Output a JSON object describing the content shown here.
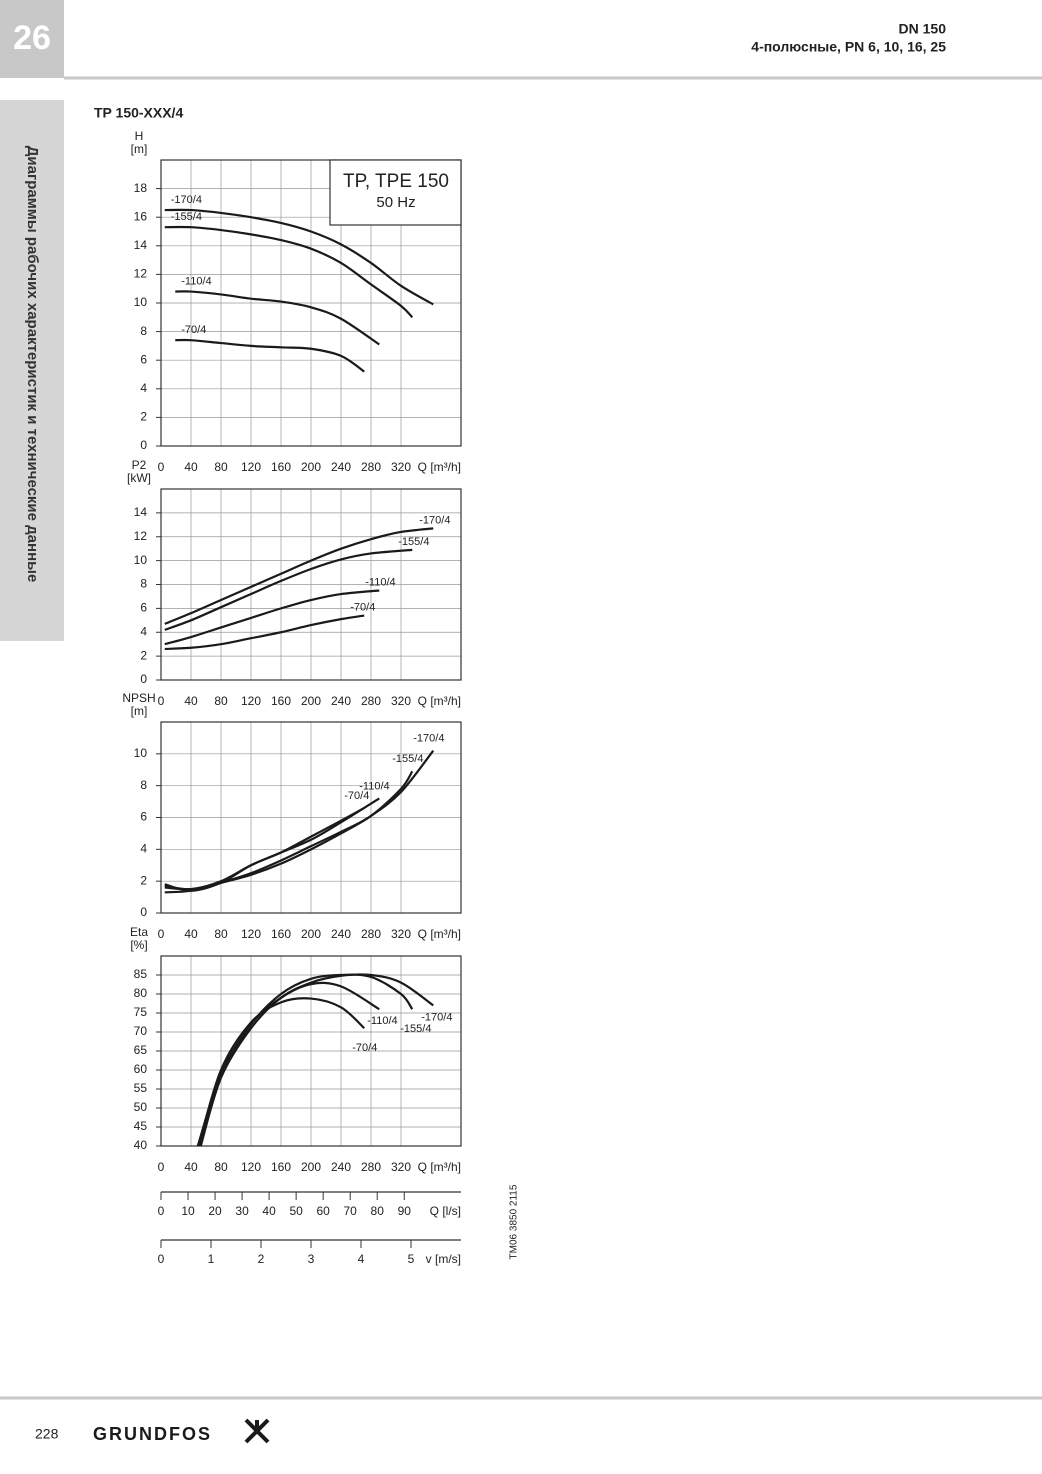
{
  "header": {
    "page_tab": "26",
    "title": "DN 150",
    "subtitle": "4-полюсные, PN 6, 10, 16, 25",
    "side_tab": "Диаграммы рабочих характеристик и технические данные"
  },
  "section_title": "TP 150-XXX/4",
  "chart_data": [
    {
      "type": "line",
      "ylabel": [
        "H",
        "[m]"
      ],
      "xlabel": "Q [m³/h]",
      "color": "#1a1a1a",
      "grid": true,
      "annotation": [
        "TP, TPE 150",
        "50 Hz"
      ],
      "xlim": [
        0,
        400
      ],
      "xticks": [
        0,
        40,
        80,
        120,
        160,
        200,
        240,
        280,
        320
      ],
      "ylim": [
        0,
        20
      ],
      "yticks": [
        0,
        2,
        4,
        6,
        8,
        10,
        12,
        14,
        16,
        18
      ],
      "series": [
        {
          "name": "-170/4",
          "x": [
            5,
            40,
            80,
            120,
            160,
            200,
            240,
            280,
            320,
            363
          ],
          "values": [
            16.5,
            16.5,
            16.3,
            16.0,
            15.6,
            15.0,
            14.1,
            12.8,
            11.2,
            9.9
          ]
        },
        {
          "name": "-155/4",
          "x": [
            5,
            40,
            80,
            120,
            160,
            200,
            240,
            280,
            320,
            335
          ],
          "values": [
            15.3,
            15.3,
            15.1,
            14.8,
            14.4,
            13.8,
            12.8,
            11.3,
            9.8,
            9.0
          ]
        },
        {
          "name": "-110/4",
          "x": [
            19,
            40,
            80,
            120,
            160,
            200,
            240,
            291
          ],
          "values": [
            10.8,
            10.8,
            10.6,
            10.3,
            10.1,
            9.7,
            8.9,
            7.1
          ]
        },
        {
          "name": "-70/4",
          "x": [
            19,
            40,
            80,
            120,
            160,
            200,
            240,
            271
          ],
          "values": [
            7.4,
            7.4,
            7.2,
            7.0,
            6.9,
            6.8,
            6.3,
            5.2
          ]
        }
      ]
    },
    {
      "type": "line",
      "ylabel": [
        "P2",
        "[kW]"
      ],
      "xlabel": "Q [m³/h]",
      "color": "#1a1a1a",
      "grid": true,
      "xlim": [
        0,
        400
      ],
      "xticks": [
        0,
        40,
        80,
        120,
        160,
        200,
        240,
        280,
        320
      ],
      "ylim": [
        0,
        16
      ],
      "yticks": [
        0,
        2,
        4,
        6,
        8,
        10,
        12,
        14
      ],
      "series": [
        {
          "name": "-170/4",
          "x": [
            5,
            40,
            80,
            120,
            160,
            200,
            240,
            280,
            320,
            363
          ],
          "values": [
            4.7,
            5.6,
            6.7,
            7.8,
            8.9,
            10.0,
            11.0,
            11.8,
            12.4,
            12.7
          ]
        },
        {
          "name": "-155/4",
          "x": [
            5,
            40,
            80,
            120,
            160,
            200,
            240,
            280,
            335
          ],
          "values": [
            4.2,
            5.0,
            6.1,
            7.2,
            8.3,
            9.3,
            10.1,
            10.6,
            10.9
          ]
        },
        {
          "name": "-110/4",
          "x": [
            5,
            40,
            80,
            120,
            160,
            200,
            240,
            291
          ],
          "values": [
            3.0,
            3.6,
            4.4,
            5.2,
            6.0,
            6.7,
            7.2,
            7.5
          ]
        },
        {
          "name": "-70/4",
          "x": [
            5,
            40,
            80,
            120,
            160,
            200,
            240,
            271
          ],
          "values": [
            2.6,
            2.7,
            3.0,
            3.5,
            4.0,
            4.6,
            5.1,
            5.4
          ]
        }
      ]
    },
    {
      "type": "line",
      "ylabel": [
        "NPSH",
        "[m]"
      ],
      "xlabel": "Q [m³/h]",
      "color": "#1a1a1a",
      "grid": true,
      "xlim": [
        0,
        400
      ],
      "xticks": [
        0,
        40,
        80,
        120,
        160,
        200,
        240,
        280,
        320
      ],
      "ylim": [
        0,
        12
      ],
      "yticks": [
        0,
        2,
        4,
        6,
        8,
        10
      ],
      "series": [
        {
          "name": "-170/4",
          "x": [
            5,
            40,
            80,
            120,
            160,
            200,
            240,
            280,
            320,
            363
          ],
          "values": [
            1.6,
            1.5,
            1.9,
            2.4,
            3.1,
            4.0,
            5.0,
            6.1,
            7.6,
            10.2
          ]
        },
        {
          "name": "-155/4",
          "x": [
            5,
            40,
            80,
            120,
            160,
            200,
            240,
            280,
            320,
            335
          ],
          "values": [
            1.3,
            1.4,
            1.9,
            2.5,
            3.3,
            4.2,
            5.1,
            6.1,
            7.8,
            8.9
          ]
        },
        {
          "name": "-110/4",
          "x": [
            5,
            40,
            80,
            120,
            160,
            200,
            240,
            291
          ],
          "values": [
            1.7,
            1.5,
            2.0,
            3.0,
            3.8,
            4.6,
            5.7,
            7.2
          ]
        },
        {
          "name": "-70/4",
          "x": [
            5,
            40,
            80,
            120,
            160,
            200,
            240,
            271
          ],
          "values": [
            1.8,
            1.4,
            1.9,
            3.0,
            3.8,
            4.8,
            5.8,
            6.6
          ]
        }
      ]
    },
    {
      "type": "line",
      "ylabel": [
        "Eta",
        "[%]"
      ],
      "xlabel": "Q [m³/h]",
      "color": "#1a1a1a",
      "grid": true,
      "xlim": [
        0,
        400
      ],
      "xticks": [
        0,
        40,
        80,
        120,
        160,
        200,
        240,
        280,
        320
      ],
      "ylim": [
        40,
        90
      ],
      "yticks": [
        40,
        45,
        50,
        55,
        60,
        65,
        70,
        75,
        80,
        85
      ],
      "series": [
        {
          "name": "-170/4",
          "x": [
            52,
            80,
            120,
            160,
            200,
            240,
            280,
            320,
            363
          ],
          "values": [
            40,
            58,
            71,
            79,
            83,
            84.8,
            85,
            83,
            77
          ]
        },
        {
          "name": "-155/4",
          "x": [
            49,
            80,
            120,
            160,
            200,
            240,
            280,
            320,
            335
          ],
          "values": [
            40,
            59,
            72,
            80,
            84,
            85,
            84.5,
            80,
            76
          ]
        },
        {
          "name": "-110/4",
          "x": [
            53,
            80,
            120,
            160,
            200,
            240,
            291
          ],
          "values": [
            40,
            58,
            72,
            79,
            82.6,
            82,
            76
          ]
        },
        {
          "name": "-70/4",
          "x": [
            50,
            80,
            120,
            160,
            200,
            240,
            271
          ],
          "values": [
            40,
            60,
            72.5,
            77.8,
            78.8,
            76.5,
            71
          ]
        }
      ]
    }
  ],
  "scales": [
    {
      "xlabel": "Q [l/s]",
      "xlim": [
        0,
        111
      ],
      "xticks": [
        0,
        10,
        20,
        30,
        40,
        50,
        60,
        70,
        80,
        90
      ]
    },
    {
      "xlabel": "v [m/s]",
      "xlim": [
        0,
        6
      ],
      "xticks": [
        0,
        1,
        2,
        3,
        4,
        5
      ]
    }
  ],
  "drawing_code": "TM06 3850 2115",
  "footer": {
    "page_number": "228",
    "brand": "GRUNDFOS"
  }
}
